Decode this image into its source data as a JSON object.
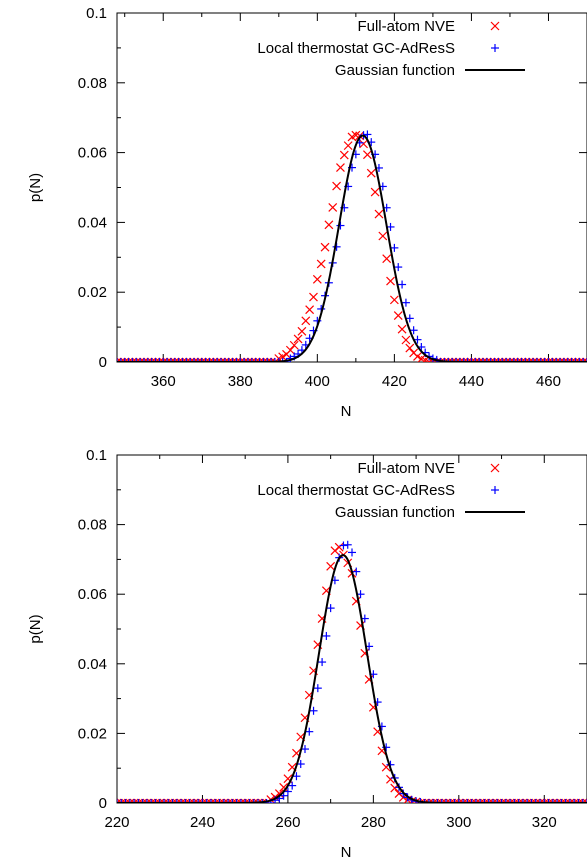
{
  "chart_data": [
    {
      "type": "scatter",
      "xlabel": "N",
      "ylabel": "p(N)",
      "xlim": [
        348,
        470
      ],
      "ylim": [
        0,
        0.1
      ],
      "xticks": [
        "360",
        "380",
        "400",
        "420",
        "440",
        "460"
      ],
      "yticks": [
        "0",
        "0.02",
        "0.04",
        "0.06",
        "0.08",
        "0.1"
      ],
      "legend_position": "top-right",
      "grid": false,
      "series": [
        {
          "name": "Full-atom NVE",
          "marker": "x",
          "color": "#ff0000",
          "x": [
            390,
            391,
            392,
            393,
            394,
            395,
            396,
            397,
            398,
            399,
            400,
            401,
            402,
            403,
            404,
            405,
            406,
            407,
            408,
            409,
            410,
            411,
            412,
            413,
            414,
            415,
            416,
            417,
            418,
            419,
            420,
            421,
            422,
            423,
            424,
            425,
            426,
            427,
            428
          ],
          "y": [
            0.001,
            0.0015,
            0.0022,
            0.0034,
            0.0048,
            0.0066,
            0.0088,
            0.0118,
            0.015,
            0.0186,
            0.0237,
            0.0281,
            0.0329,
            0.0393,
            0.0443,
            0.0504,
            0.0557,
            0.0593,
            0.062,
            0.0645,
            0.065,
            0.0648,
            0.0625,
            0.0594,
            0.0541,
            0.0487,
            0.0424,
            0.0361,
            0.0296,
            0.0232,
            0.0178,
            0.0133,
            0.0094,
            0.0063,
            0.004,
            0.0026,
            0.0016,
            0.0009,
            0.0005
          ]
        },
        {
          "name": "Local thermostat GC-AdResS",
          "marker": "+",
          "color": "#0000ff",
          "x": [
            393,
            394,
            395,
            396,
            397,
            398,
            399,
            400,
            401,
            402,
            403,
            404,
            405,
            406,
            407,
            408,
            409,
            410,
            411,
            412,
            413,
            414,
            415,
            416,
            417,
            418,
            419,
            420,
            421,
            422,
            423,
            424,
            425,
            426,
            427,
            428,
            429,
            430,
            431
          ],
          "y": [
            0.001,
            0.0016,
            0.0023,
            0.0034,
            0.0049,
            0.0068,
            0.009,
            0.0118,
            0.0152,
            0.019,
            0.0227,
            0.0284,
            0.033,
            0.0391,
            0.0442,
            0.0503,
            0.0557,
            0.0595,
            0.0628,
            0.065,
            0.0652,
            0.063,
            0.0595,
            0.0556,
            0.0503,
            0.0442,
            0.0387,
            0.0327,
            0.0272,
            0.0222,
            0.017,
            0.0125,
            0.0091,
            0.0064,
            0.0043,
            0.0027,
            0.0016,
            0.001,
            0.0006
          ]
        },
        {
          "name": "Gaussian function",
          "marker": "line",
          "color": "#000000",
          "mean": 411.8,
          "sigma": 6.15
        }
      ]
    },
    {
      "type": "scatter",
      "xlabel": "N",
      "ylabel": "p(N)",
      "xlim": [
        220,
        330
      ],
      "ylim": [
        0,
        0.1
      ],
      "xticks": [
        "220",
        "240",
        "260",
        "280",
        "300",
        "320"
      ],
      "yticks": [
        "0",
        "0.02",
        "0.04",
        "0.06",
        "0.08",
        "0.1"
      ],
      "legend_position": "top-right",
      "grid": false,
      "series": [
        {
          "name": "Full-atom NVE",
          "marker": "x",
          "color": "#ff0000",
          "x": [
            256,
            257,
            258,
            259,
            260,
            261,
            262,
            263,
            264,
            265,
            266,
            267,
            268,
            269,
            270,
            271,
            272,
            273,
            274,
            275,
            276,
            277,
            278,
            279,
            280,
            281,
            282,
            283,
            284,
            285,
            286,
            287,
            288,
            289,
            290
          ],
          "y": [
            0.001,
            0.0017,
            0.0027,
            0.0045,
            0.007,
            0.0103,
            0.0143,
            0.019,
            0.0245,
            0.031,
            0.038,
            0.0455,
            0.053,
            0.061,
            0.068,
            0.0725,
            0.0735,
            0.0713,
            0.069,
            0.066,
            0.058,
            0.051,
            0.043,
            0.0355,
            0.0275,
            0.0205,
            0.015,
            0.0103,
            0.0068,
            0.0043,
            0.0027,
            0.0016,
            0.0009,
            0.0005,
            0.0003
          ]
        },
        {
          "name": "Local thermostat GC-AdResS",
          "marker": "+",
          "color": "#0000ff",
          "x": [
            257,
            258,
            259,
            260,
            261,
            262,
            263,
            264,
            265,
            266,
            267,
            268,
            269,
            270,
            271,
            272,
            273,
            274,
            275,
            276,
            277,
            278,
            279,
            280,
            281,
            282,
            283,
            284,
            285,
            286,
            287,
            288,
            289,
            290,
            291
          ],
          "y": [
            0.0008,
            0.0013,
            0.0021,
            0.0033,
            0.005,
            0.0077,
            0.0112,
            0.0155,
            0.0205,
            0.0265,
            0.033,
            0.0405,
            0.048,
            0.056,
            0.064,
            0.0705,
            0.074,
            0.0742,
            0.072,
            0.0665,
            0.06,
            0.053,
            0.045,
            0.037,
            0.029,
            0.022,
            0.016,
            0.011,
            0.0072,
            0.0045,
            0.0027,
            0.0016,
            0.0009,
            0.0005,
            0.0003
          ]
        },
        {
          "name": "Gaussian function",
          "marker": "line",
          "color": "#000000",
          "mean": 272.9,
          "sigma": 5.6
        }
      ]
    }
  ]
}
